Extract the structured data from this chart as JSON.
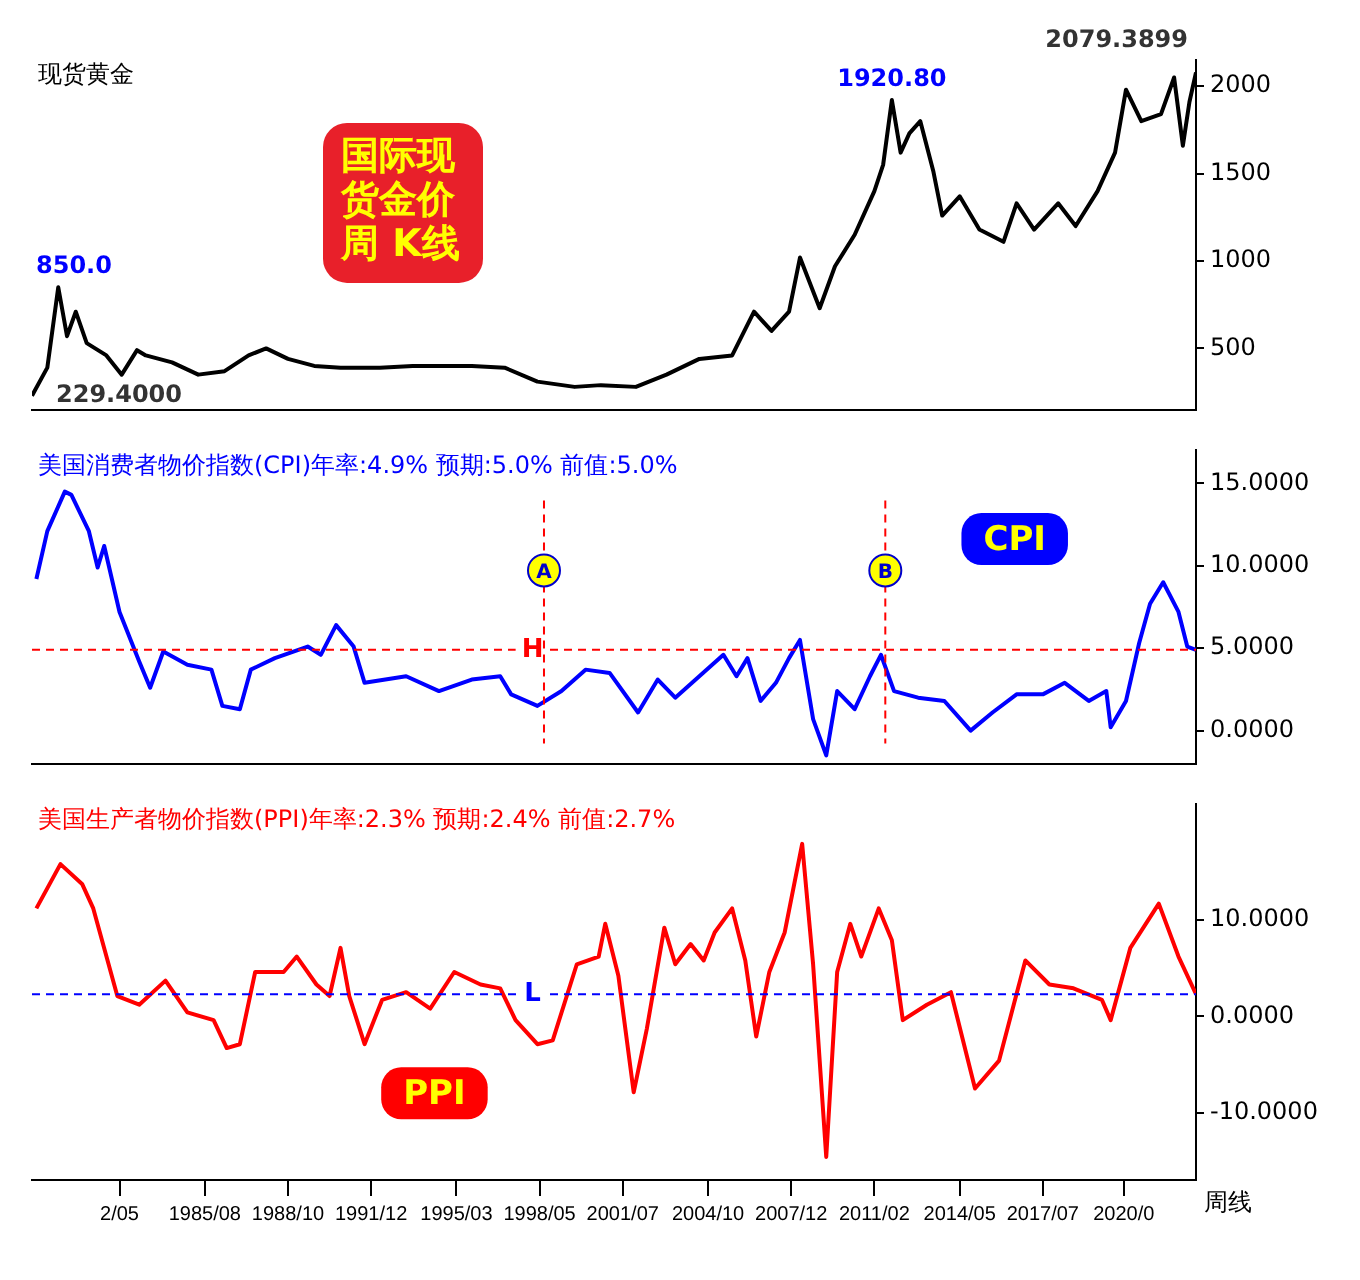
{
  "chart_data": [
    {
      "type": "line",
      "title": "现货黄金",
      "tick_labels": "y",
      "grid": false,
      "marker": "none",
      "line_style": "solid",
      "xlim": [
        "1979-01",
        "2023-05"
      ],
      "ylim": [
        150,
        2150
      ],
      "yticks": [
        500,
        1000,
        1500,
        2000
      ],
      "series": [
        {
          "color": "#000000",
          "x": [
            "1979-01",
            "1979-08",
            "1980-01",
            "1980-05",
            "1980-09",
            "1981-02",
            "1981-11",
            "1982-06",
            "1983-01",
            "1983-05",
            "1984-05",
            "1985-05",
            "1986-05",
            "1987-04",
            "1987-12",
            "1988-10",
            "1989-10",
            "1990-10",
            "1992-04",
            "1993-07",
            "1995-10",
            "1997-01",
            "1998-04",
            "1999-09",
            "2000-09",
            "2002-01",
            "2003-03",
            "2004-06",
            "2005-09",
            "2006-07",
            "2007-03",
            "2007-11",
            "2008-04",
            "2009-01",
            "2009-08",
            "2010-05",
            "2011-02",
            "2011-06",
            "2011-10",
            "2012-02",
            "2012-06",
            "2012-11",
            "2013-05",
            "2013-09",
            "2014-05",
            "2015-02",
            "2016-01",
            "2016-07",
            "2017-03",
            "2018-02",
            "2018-10",
            "2019-08",
            "2020-04",
            "2020-09",
            "2021-04",
            "2022-01",
            "2022-07",
            "2022-11",
            "2023-02",
            "2023-05"
          ],
          "values": [
            229.4,
            390,
            850,
            570,
            710,
            530,
            460,
            350,
            490,
            460,
            420,
            350,
            370,
            460,
            500,
            440,
            400,
            390,
            390,
            400,
            400,
            390,
            310,
            280,
            290,
            280,
            350,
            440,
            460,
            710,
            600,
            710,
            1020,
            730,
            970,
            1150,
            1400,
            1550,
            1920.8,
            1620,
            1730,
            1800,
            1510,
            1260,
            1370,
            1180,
            1110,
            1330,
            1180,
            1330,
            1200,
            1400,
            1620,
            1980,
            1800,
            1840,
            2050,
            1660,
            1910,
            2079
          ]
        }
      ],
      "annotations": [
        "国际现货金价周 K线",
        {
          "text": "850.0",
          "x": "1980-01",
          "y": 850
        },
        {
          "text": "1920.80",
          "x": "2011-10",
          "y": 1920.8
        },
        {
          "text": "229.4000",
          "x": "1979-01",
          "y": 229.4
        },
        {
          "text": "2079.3899",
          "x": "2023-05",
          "y": 2079
        }
      ]
    },
    {
      "type": "line",
      "title": "美国消费者物价指数(CPI)年率:4.9% 预期:5.0% 前值:5.0%",
      "tick_labels": "y",
      "grid": false,
      "marker": "none",
      "line_style": "solid",
      "legend": "top right",
      "xlim": [
        "1979-01",
        "2023-05"
      ],
      "ylim": [
        -2,
        17
      ],
      "yticks": [
        {
          "value": 0,
          "label": "0.0000"
        },
        {
          "value": 5,
          "label": "5.0000"
        },
        {
          "value": 10,
          "label": "10.0000"
        },
        {
          "value": 15,
          "label": "15.0000"
        }
      ],
      "series": [
        {
          "name": "CPI",
          "color": "#0000ff",
          "x": [
            "1979-03",
            "1979-08",
            "1980-04",
            "1980-07",
            "1981-03",
            "1981-07",
            "1981-10",
            "1982-05",
            "1983-02",
            "1983-07",
            "1984-01",
            "1984-12",
            "1985-11",
            "1986-04",
            "1986-12",
            "1987-05",
            "1988-04",
            "1989-07",
            "1990-01",
            "1990-08",
            "1991-04",
            "1991-09",
            "1993-04",
            "1994-07",
            "1995-10",
            "1996-11",
            "1997-04",
            "1998-04",
            "1999-03",
            "2000-02",
            "2001-01",
            "2002-02",
            "2002-11",
            "2003-07",
            "2004-06",
            "2005-05",
            "2005-11",
            "2006-04",
            "2006-10",
            "2007-05",
            "2007-11",
            "2008-04",
            "2008-10",
            "2009-04",
            "2009-09",
            "2010-05",
            "2010-12",
            "2011-05",
            "2011-11",
            "2012-10",
            "2013-10",
            "2014-10",
            "2015-08",
            "2016-07",
            "2017-07",
            "2018-05",
            "2019-04",
            "2019-12",
            "2020-02",
            "2020-09",
            "2021-03",
            "2021-08",
            "2022-02",
            "2022-09",
            "2023-01",
            "2023-05"
          ],
          "values": [
            9.2,
            12.1,
            14.5,
            14.3,
            12.1,
            9.9,
            11.2,
            7.2,
            4.2,
            2.6,
            4.8,
            4.0,
            3.7,
            1.5,
            1.3,
            3.7,
            4.4,
            5.1,
            4.6,
            6.4,
            5.1,
            2.9,
            3.3,
            2.4,
            3.1,
            3.3,
            2.2,
            1.5,
            2.4,
            3.7,
            3.5,
            1.1,
            3.1,
            2.0,
            3.3,
            4.6,
            3.3,
            4.4,
            1.8,
            2.9,
            4.4,
            5.5,
            0.7,
            -1.5,
            2.4,
            1.3,
            3.3,
            4.6,
            2.4,
            2.0,
            1.8,
            0.0,
            1.1,
            2.2,
            2.2,
            2.9,
            1.8,
            2.4,
            0.2,
            1.8,
            5.3,
            7.7,
            9.0,
            7.2,
            5.1,
            4.9
          ]
        }
      ],
      "ref_lines": [
        {
          "axis": "y",
          "value": 4.9,
          "label": "H",
          "color": "#ff0000",
          "line_style": "dashed"
        },
        {
          "axis": "x",
          "value": "1998-07",
          "label": "A",
          "color": "#ff0000",
          "line_style": "dashed"
        },
        {
          "axis": "x",
          "value": "2011-07",
          "label": "B",
          "color": "#ff0000",
          "line_style": "dashed"
        }
      ]
    },
    {
      "type": "line",
      "title": "美国生产者物价指数(PPI)年率:2.3% 预期:2.4% 前值:2.7%",
      "grid": false,
      "marker": "none",
      "line_style": "solid",
      "legend": "bottom left",
      "xlim": [
        "1979-01",
        "2023-05"
      ],
      "xticks": [
        {
          "value": "1982-05",
          "label": "2/05"
        },
        {
          "value": "1985-08",
          "label": "1985/08"
        },
        {
          "value": "1988-10",
          "label": "1988/10"
        },
        {
          "value": "1991-12",
          "label": "1991/12"
        },
        {
          "value": "1995-03",
          "label": "1995/03"
        },
        {
          "value": "1998-05",
          "label": "1998/05"
        },
        {
          "value": "2001-07",
          "label": "2001/07"
        },
        {
          "value": "2004-10",
          "label": "2004/10"
        },
        {
          "value": "2007-12",
          "label": "2007/12"
        },
        {
          "value": "2011-02",
          "label": "2011/02"
        },
        {
          "value": "2014-05",
          "label": "2014/05"
        },
        {
          "value": "2017-07",
          "label": "2017/07"
        },
        {
          "value": "2020-08",
          "label": "2020/0"
        }
      ],
      "ylim": [
        -17,
        22
      ],
      "yticks": [
        {
          "value": -10,
          "label": "-10.0000"
        },
        {
          "value": 0,
          "label": "0.0000"
        },
        {
          "value": 10,
          "label": "10.0000"
        }
      ],
      "series": [
        {
          "name": "PPI",
          "color": "#ff0000",
          "x": [
            "1979-03",
            "1980-02",
            "1980-12",
            "1981-05",
            "1982-04",
            "1983-02",
            "1984-02",
            "1984-12",
            "1985-12",
            "1986-06",
            "1986-12",
            "1987-07",
            "1988-08",
            "1989-02",
            "1989-11",
            "1990-05",
            "1990-10",
            "1991-02",
            "1991-09",
            "1992-05",
            "1993-04",
            "1994-03",
            "1995-02",
            "1996-02",
            "1996-11",
            "1997-06",
            "1998-04",
            "1998-11",
            "1999-10",
            "2000-08",
            "2000-11",
            "2001-05",
            "2001-12",
            "2002-06",
            "2003-02",
            "2003-07",
            "2004-02",
            "2004-08",
            "2005-01",
            "2005-09",
            "2006-03",
            "2006-08",
            "2007-02",
            "2007-09",
            "2008-05",
            "2008-10",
            "2009-04",
            "2009-09",
            "2010-03",
            "2010-08",
            "2011-04",
            "2011-10",
            "2012-03",
            "2013-02",
            "2014-01",
            "2014-12",
            "2015-11",
            "2016-11",
            "2017-10",
            "2018-09",
            "2019-10",
            "2020-02",
            "2020-11",
            "2021-12",
            "2022-09",
            "2023-05"
          ],
          "values": [
            11.2,
            15.8,
            13.7,
            11.2,
            2.1,
            1.2,
            3.7,
            0.4,
            -0.4,
            -3.3,
            -2.9,
            4.6,
            4.6,
            6.2,
            3.3,
            2.1,
            7.1,
            2.1,
            -2.9,
            1.7,
            2.5,
            0.8,
            4.6,
            3.3,
            2.9,
            -0.4,
            -2.9,
            -2.5,
            5.4,
            6.2,
            9.6,
            4.2,
            -7.9,
            -1.3,
            9.2,
            5.4,
            7.5,
            5.8,
            8.7,
            11.2,
            5.8,
            -2.1,
            4.6,
            8.7,
            17.9,
            5.4,
            -14.6,
            4.6,
            9.6,
            6.2,
            11.2,
            7.9,
            -0.4,
            1.2,
            2.5,
            -7.5,
            -4.6,
            5.8,
            3.3,
            2.9,
            1.7,
            -0.4,
            7.1,
            11.7,
            6.2,
            2.3
          ]
        }
      ],
      "ref_lines": [
        {
          "axis": "y",
          "value": 2.3,
          "label": "L",
          "color": "#0000ff",
          "line_style": "dashed"
        }
      ],
      "annotations": [
        "周线"
      ]
    }
  ]
}
